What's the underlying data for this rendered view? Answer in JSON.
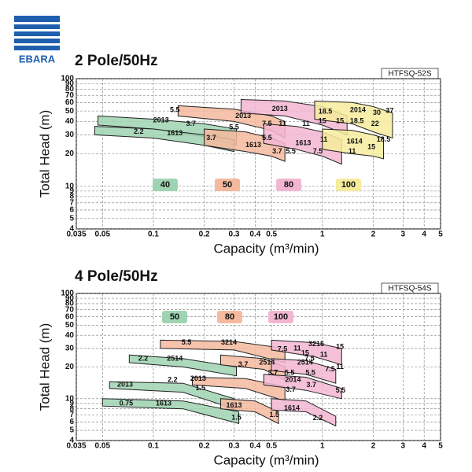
{
  "logo": "EBARA",
  "chart_data": [
    {
      "type": "area",
      "title": "2 Pole/50Hz",
      "model": "HTFSQ-52S",
      "xlabel": "Capacity (m³/min)",
      "ylabel": "Total Head (m)",
      "log_x": true,
      "log_y": true,
      "grid": true,
      "xlim": [
        0.035,
        5
      ],
      "ylim": [
        4,
        100
      ],
      "xticks": [
        0.035,
        0.05,
        0.1,
        0.2,
        0.3,
        0.4,
        0.5,
        1,
        2,
        3,
        4,
        5
      ],
      "yticks": [
        4,
        5,
        6,
        7,
        8,
        9,
        10,
        20,
        30,
        40,
        50,
        60,
        70,
        80,
        90,
        100
      ],
      "series": [
        {
          "name": "40",
          "color": "#9fd4b2",
          "bands": [
            {
              "x": [
                0.047,
                0.1,
                0.2,
                0.31
              ],
              "upper": [
                45,
                42,
                38,
                34
              ],
              "lower": [
                37,
                34,
                29,
                24
              ]
            },
            {
              "x": [
                0.045,
                0.1,
                0.2,
                0.3
              ],
              "upper": [
                36,
                34,
                30,
                27
              ],
              "lower": [
                30,
                28,
                24,
                21
              ]
            }
          ]
        },
        {
          "name": "50",
          "color": "#f5b99e",
          "bands": [
            {
              "x": [
                0.14,
                0.3,
                0.5,
                0.6
              ],
              "upper": [
                56,
                52,
                45,
                40
              ],
              "lower": [
                45,
                40,
                33,
                28
              ]
            },
            {
              "x": [
                0.2,
                0.35,
                0.5,
                0.6
              ],
              "upper": [
                34,
                32,
                28,
                25
              ],
              "lower": [
                24,
                21,
                19,
                17
              ]
            }
          ]
        },
        {
          "name": "80",
          "color": "#f3b6d2",
          "bands": [
            {
              "x": [
                0.33,
                0.6,
                1,
                1.4
              ],
              "upper": [
                64,
                62,
                55,
                45
              ],
              "lower": [
                48,
                45,
                37,
                30
              ]
            },
            {
              "x": [
                0.45,
                0.7,
                1,
                1.3
              ],
              "upper": [
                38,
                36,
                32,
                27
              ],
              "lower": [
                25,
                22,
                19,
                16
              ]
            }
          ]
        },
        {
          "name": "100",
          "color": "#f6ec9c",
          "bands": [
            {
              "x": [
                0.9,
                1.5,
                2,
                2.6
              ],
              "upper": [
                62,
                60,
                55,
                48
              ],
              "lower": [
                42,
                38,
                32,
                28
              ]
            },
            {
              "x": [
                1,
                1.5,
                2,
                2.3
              ],
              "upper": [
                34,
                33,
                30,
                28
              ],
              "lower": [
                22,
                20,
                19,
                18
              ]
            }
          ]
        }
      ],
      "annotations": [
        {
          "text": "5.5",
          "x": 0.134,
          "y": 51
        },
        {
          "text": "2013",
          "x": 0.111,
          "y": 41
        },
        {
          "text": "3.7",
          "x": 0.167,
          "y": 38
        },
        {
          "text": "2.2",
          "x": 0.082,
          "y": 32
        },
        {
          "text": "1613",
          "x": 0.134,
          "y": 31
        },
        {
          "text": "3.7",
          "x": 0.22,
          "y": 28
        },
        {
          "text": "5.5",
          "x": 0.3,
          "y": 35
        },
        {
          "text": "2013",
          "x": 0.34,
          "y": 45
        },
        {
          "text": "7.5",
          "x": 0.47,
          "y": 38
        },
        {
          "text": "11",
          "x": 0.58,
          "y": 38
        },
        {
          "text": "5.5",
          "x": 0.47,
          "y": 28
        },
        {
          "text": "1613",
          "x": 0.39,
          "y": 24
        },
        {
          "text": "3.7",
          "x": 0.54,
          "y": 21
        },
        {
          "text": "2013",
          "x": 0.56,
          "y": 52
        },
        {
          "text": "18.5",
          "x": 1.04,
          "y": 49
        },
        {
          "text": "15",
          "x": 1,
          "y": 40
        },
        {
          "text": "11",
          "x": 0.8,
          "y": 38
        },
        {
          "text": "1613",
          "x": 0.77,
          "y": 25
        },
        {
          "text": "11",
          "x": 1.02,
          "y": 27
        },
        {
          "text": "5.5",
          "x": 0.65,
          "y": 21
        },
        {
          "text": "7.5",
          "x": 0.94,
          "y": 21
        },
        {
          "text": "15",
          "x": 1.27,
          "y": 40
        },
        {
          "text": "2014",
          "x": 1.62,
          "y": 51
        },
        {
          "text": "30",
          "x": 2.1,
          "y": 48
        },
        {
          "text": "37",
          "x": 2.5,
          "y": 50
        },
        {
          "text": "18.5",
          "x": 1.6,
          "y": 40
        },
        {
          "text": "22",
          "x": 2.05,
          "y": 38
        },
        {
          "text": "1614",
          "x": 1.55,
          "y": 26
        },
        {
          "text": "18.5",
          "x": 2.3,
          "y": 27
        },
        {
          "text": "15",
          "x": 1.95,
          "y": 23
        },
        {
          "text": "11",
          "x": 1.5,
          "y": 21
        }
      ]
    },
    {
      "type": "area",
      "title": "4 Pole/50Hz",
      "model": "HTFSQ-54S",
      "xlabel": "Capacity (m³/min)",
      "ylabel": "Total Head (m)",
      "log_x": true,
      "log_y": true,
      "grid": true,
      "xlim": [
        0.035,
        5
      ],
      "ylim": [
        4,
        100
      ],
      "xticks": [
        0.035,
        0.05,
        0.1,
        0.2,
        0.3,
        0.4,
        0.5,
        1,
        2,
        3,
        4,
        5
      ],
      "yticks": [
        4,
        5,
        6,
        7,
        8,
        9,
        10,
        20,
        30,
        40,
        50,
        60,
        70,
        80,
        90,
        100
      ],
      "series": [
        {
          "name": "50",
          "color": "#9fd4b2",
          "bands": [
            {
              "x": [
                0.072,
                0.15,
                0.31
              ],
              "upper": [
                26,
                24,
                20
              ],
              "lower": [
                22,
                20,
                16.5
              ]
            },
            {
              "x": [
                0.055,
                0.15,
                0.3
              ],
              "upper": [
                14.5,
                14,
                10
              ],
              "lower": [
                12.5,
                11.5,
                8
              ]
            },
            {
              "x": [
                0.05,
                0.15,
                0.32
              ],
              "upper": [
                10,
                9.5,
                7.5
              ],
              "lower": [
                8.5,
                8,
                5.8
              ]
            }
          ]
        },
        {
          "name": "80",
          "color": "#f5b99e",
          "bands": [
            {
              "x": [
                0.11,
                0.3,
                0.6
              ],
              "upper": [
                36,
                35,
                30
              ],
              "lower": [
                30,
                29,
                22
              ]
            },
            {
              "x": [
                0.25,
                0.45,
                0.6
              ],
              "upper": [
                26,
                24,
                20
              ],
              "lower": [
                21,
                19,
                15
              ]
            },
            {
              "x": [
                0.17,
                0.35,
                0.6
              ],
              "upper": [
                16,
                15.5,
                13
              ],
              "lower": [
                13.5,
                12.5,
                9.5
              ]
            },
            {
              "x": [
                0.25,
                0.4,
                0.55
              ],
              "upper": [
                10,
                9.5,
                7.5
              ],
              "lower": [
                8,
                7.5,
                5.8
              ]
            }
          ]
        },
        {
          "name": "100",
          "color": "#f3b6d2",
          "bands": [
            {
              "x": [
                0.5,
                0.9,
                1.3
              ],
              "upper": [
                36,
                34,
                30
              ],
              "lower": [
                29,
                25,
                21
              ]
            },
            {
              "x": [
                0.5,
                0.8,
                1.2
              ],
              "upper": [
                24,
                23,
                19
              ],
              "lower": [
                18.5,
                17,
                14
              ]
            },
            {
              "x": [
                0.45,
                0.8,
                1.3
              ],
              "upper": [
                17,
                16,
                12.5
              ],
              "lower": [
                13.5,
                12,
                10
              ]
            },
            {
              "x": [
                0.5,
                0.8,
                1.2
              ],
              "upper": [
                10,
                9.5,
                6.8
              ],
              "lower": [
                7.8,
                7.5,
                5.5
              ]
            }
          ]
        }
      ],
      "annotations": [
        {
          "text": "5.5",
          "x": 0.157,
          "y": 33.9
        },
        {
          "text": "3214",
          "x": 0.28,
          "y": 34
        },
        {
          "text": "7.5",
          "x": 0.58,
          "y": 29.5
        },
        {
          "text": "11",
          "x": 0.71,
          "y": 30
        },
        {
          "text": "3215",
          "x": 0.92,
          "y": 33
        },
        {
          "text": "15",
          "x": 1.27,
          "y": 31
        },
        {
          "text": "15",
          "x": 0.79,
          "y": 27
        },
        {
          "text": "7.5",
          "x": 0.84,
          "y": 24
        },
        {
          "text": "11",
          "x": 1.02,
          "y": 26
        },
        {
          "text": "2.2",
          "x": 0.087,
          "y": 24
        },
        {
          "text": "2514",
          "x": 0.134,
          "y": 24
        },
        {
          "text": "3.7",
          "x": 0.34,
          "y": 21
        },
        {
          "text": "2514",
          "x": 0.47,
          "y": 22
        },
        {
          "text": "3.7",
          "x": 0.51,
          "y": 17.6
        },
        {
          "text": "5.5",
          "x": 0.64,
          "y": 17.6
        },
        {
          "text": "2514",
          "x": 0.79,
          "y": 22
        },
        {
          "text": "5.5",
          "x": 0.85,
          "y": 17.6
        },
        {
          "text": "7.5",
          "x": 1.11,
          "y": 18.9
        },
        {
          "text": "11",
          "x": 1.27,
          "y": 20
        },
        {
          "text": "2.2",
          "x": 0.13,
          "y": 15
        },
        {
          "text": "2013",
          "x": 0.184,
          "y": 15.4
        },
        {
          "text": "2014",
          "x": 0.67,
          "y": 15
        },
        {
          "text": "3.7",
          "x": 0.86,
          "y": 13.4
        },
        {
          "text": "1.5",
          "x": 0.19,
          "y": 12.5
        },
        {
          "text": "3.7",
          "x": 0.65,
          "y": 12.1
        },
        {
          "text": "5.5",
          "x": 1.28,
          "y": 11.9
        },
        {
          "text": "2013",
          "x": 0.068,
          "y": 13.6
        },
        {
          "text": "0.75",
          "x": 0.069,
          "y": 9
        },
        {
          "text": "1613",
          "x": 0.115,
          "y": 9
        },
        {
          "text": "1613",
          "x": 0.3,
          "y": 8.6
        },
        {
          "text": "1614",
          "x": 0.66,
          "y": 8.1
        },
        {
          "text": "1.5",
          "x": 0.52,
          "y": 7
        },
        {
          "text": "2.2",
          "x": 0.94,
          "y": 6.5
        },
        {
          "text": "1.5",
          "x": 0.31,
          "y": 6.6
        }
      ]
    }
  ]
}
